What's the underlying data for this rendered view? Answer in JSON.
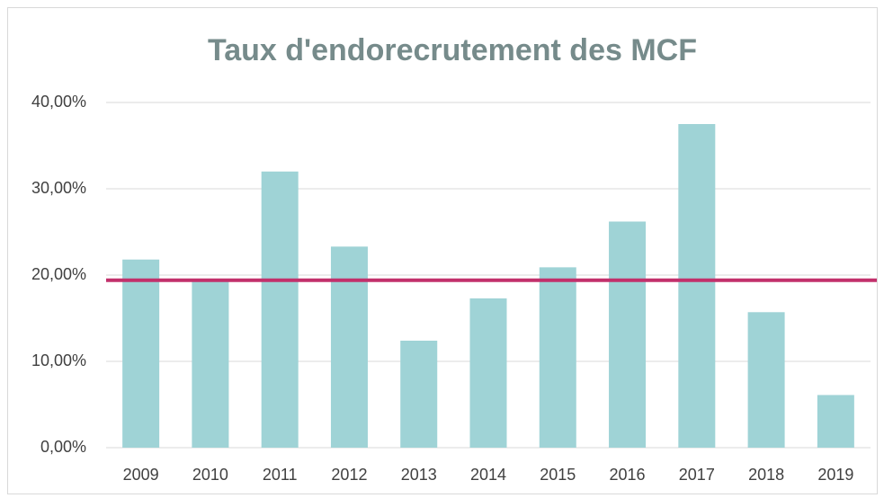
{
  "chart_data": {
    "type": "bar",
    "title": "Taux d'endorecrutement des MCF",
    "categories": [
      "2009",
      "2010",
      "2011",
      "2012",
      "2013",
      "2014",
      "2015",
      "2016",
      "2017",
      "2018",
      "2019"
    ],
    "values": [
      21.8,
      19.4,
      32.0,
      23.3,
      12.4,
      17.3,
      20.9,
      26.2,
      37.5,
      15.7,
      6.1
    ],
    "color": "#9fd3d6",
    "reference_line": {
      "value": 19.4,
      "color": "#c2306b"
    },
    "ylim": [
      0,
      40
    ],
    "yticks": [
      {
        "value": 0,
        "label": "0,00%"
      },
      {
        "value": 10,
        "label": "10,00%"
      },
      {
        "value": 20,
        "label": "20,00%"
      },
      {
        "value": 30,
        "label": "30,00%"
      },
      {
        "value": 40,
        "label": "40,00%"
      }
    ],
    "grid": true
  }
}
